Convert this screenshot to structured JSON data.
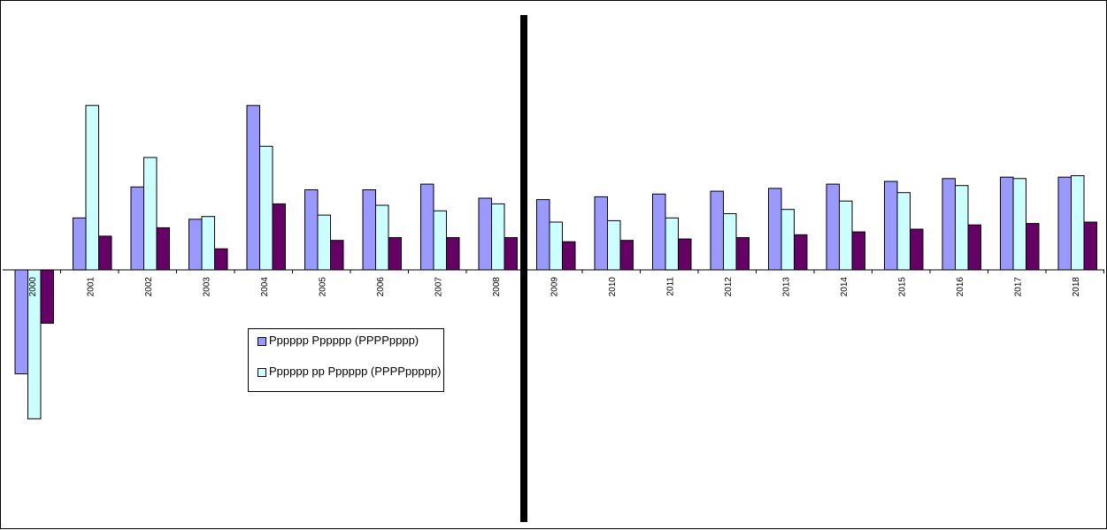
{
  "colors": {
    "series_1": "#9999ff",
    "series_2": "#ccffff",
    "series_3": "#660066",
    "divider": "#000000",
    "outline": "#000000"
  },
  "legend": {
    "items": [
      {
        "label": "Pppppp Pppppp (PPPPpppp)"
      },
      {
        "label": "Pppppp pp Pppppp (PPPPppppp)"
      }
    ]
  },
  "chart_data": {
    "type": "bar",
    "title": "",
    "xlabel": "",
    "ylabel": "",
    "y_axis_labels_shown": false,
    "categories": [
      "2000",
      "2001",
      "2002",
      "2003",
      "2004",
      "2005",
      "2006",
      "2007",
      "2008",
      "2009",
      "2010",
      "2011",
      "2012",
      "2013",
      "2014",
      "2015",
      "2016",
      "2017",
      "2018"
    ],
    "ylim": [
      -5.3,
      7.4
    ],
    "series": [
      {
        "name": "Pppppp Pppppp (PPPPpppp)",
        "values": [
          -3.7,
          1.85,
          2.95,
          1.8,
          5.85,
          2.85,
          2.85,
          3.05,
          2.55,
          2.5,
          2.6,
          2.7,
          2.8,
          2.9,
          3.05,
          3.15,
          3.25,
          3.3,
          3.3
        ]
      },
      {
        "name": "Pppppp pp Pppppp (PPPPppppp)",
        "values": [
          -5.3,
          5.85,
          4.0,
          1.9,
          4.4,
          1.95,
          2.3,
          2.1,
          2.35,
          1.7,
          1.75,
          1.85,
          2.0,
          2.15,
          2.45,
          2.75,
          3.0,
          3.25,
          3.35
        ]
      },
      {
        "values": [
          -1.9,
          1.2,
          1.5,
          0.75,
          2.35,
          1.05,
          1.15,
          1.15,
          1.15,
          1.0,
          1.05,
          1.1,
          1.15,
          1.25,
          1.35,
          1.45,
          1.6,
          1.65,
          1.7
        ]
      }
    ],
    "divider_after_category": "2008",
    "grid": false,
    "legend_position": "center-left"
  }
}
